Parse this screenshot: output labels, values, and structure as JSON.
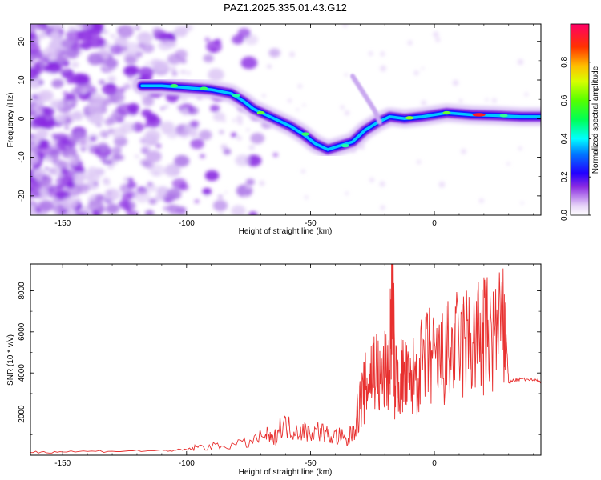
{
  "title": "PAZ1.2025.335.01.43.G12",
  "chart_data": [
    {
      "type": "heatmap",
      "xlabel": "Height of straight line (km)",
      "ylabel": "Frequency (Hz)",
      "xlim": [
        -163,
        43
      ],
      "ylim": [
        -25,
        24.5
      ],
      "xticks": [
        -150,
        -100,
        -50,
        0
      ],
      "yticks": [
        -20,
        -10,
        0,
        10,
        20
      ],
      "colorbar": {
        "label": "Normalized spectral amplitude",
        "range": [
          0,
          1
        ],
        "ticks": [
          0.0,
          0.2,
          0.4,
          0.6,
          0.8
        ]
      },
      "ridge": [
        {
          "x": -118,
          "y": 8.5
        },
        {
          "x": -110,
          "y": 8.5
        },
        {
          "x": -100,
          "y": 8
        },
        {
          "x": -90,
          "y": 7.5
        },
        {
          "x": -82,
          "y": 6.5
        },
        {
          "x": -77,
          "y": 4.5
        },
        {
          "x": -73,
          "y": 2.5
        },
        {
          "x": -68,
          "y": 1
        },
        {
          "x": -63,
          "y": -0.5
        },
        {
          "x": -58,
          "y": -2
        },
        {
          "x": -53,
          "y": -4
        },
        {
          "x": -48,
          "y": -6.5
        },
        {
          "x": -43,
          "y": -8
        },
        {
          "x": -38,
          "y": -7
        },
        {
          "x": -33,
          "y": -6
        },
        {
          "x": -28,
          "y": -3
        },
        {
          "x": -23,
          "y": -1
        },
        {
          "x": -18,
          "y": 0.5
        },
        {
          "x": -12,
          "y": 0
        },
        {
          "x": -5,
          "y": 0.5
        },
        {
          "x": 5,
          "y": 1.5
        },
        {
          "x": 15,
          "y": 1
        },
        {
          "x": 25,
          "y": 0.8
        },
        {
          "x": 35,
          "y": 0.5
        },
        {
          "x": 43,
          "y": 0.5
        }
      ]
    },
    {
      "type": "line",
      "xlabel": "Height of straight line (km)",
      "ylabel": "SNR (10 * v/v)",
      "xlim": [
        -163,
        43
      ],
      "ylim": [
        0,
        9300
      ],
      "xticks": [
        -150,
        -100,
        -50,
        0
      ],
      "yticks": [
        2000,
        4000,
        6000,
        8000
      ],
      "series": [
        {
          "color": "#e8302f",
          "x": [
            -163,
            -150,
            -130,
            -110,
            -100,
            -95,
            -85,
            -75,
            -68,
            -65,
            -62,
            -58,
            -54,
            -50,
            -46,
            -42,
            -38,
            -35,
            -32,
            -30,
            -28,
            -26,
            -24,
            -22,
            -20,
            -18,
            -17,
            -16,
            -14,
            -12,
            -10,
            -8,
            -5,
            -2,
            0,
            3,
            6,
            9,
            12,
            15,
            18,
            20,
            22,
            25,
            28,
            29,
            30,
            32,
            35,
            40,
            43
          ],
          "y": [
            150,
            170,
            200,
            220,
            250,
            400,
            450,
            600,
            1000,
            700,
            1500,
            1300,
            1200,
            1100,
            1200,
            900,
            900,
            600,
            1600,
            2500,
            3200,
            3800,
            4500,
            3500,
            4000,
            4200,
            9200,
            3600,
            3700,
            3900,
            3200,
            4000,
            4300,
            4800,
            4500,
            4600,
            5000,
            5200,
            5400,
            5500,
            5600,
            5700,
            5800,
            5900,
            5900,
            5800,
            3500,
            3650,
            3700,
            3650,
            3600
          ]
        }
      ]
    }
  ]
}
